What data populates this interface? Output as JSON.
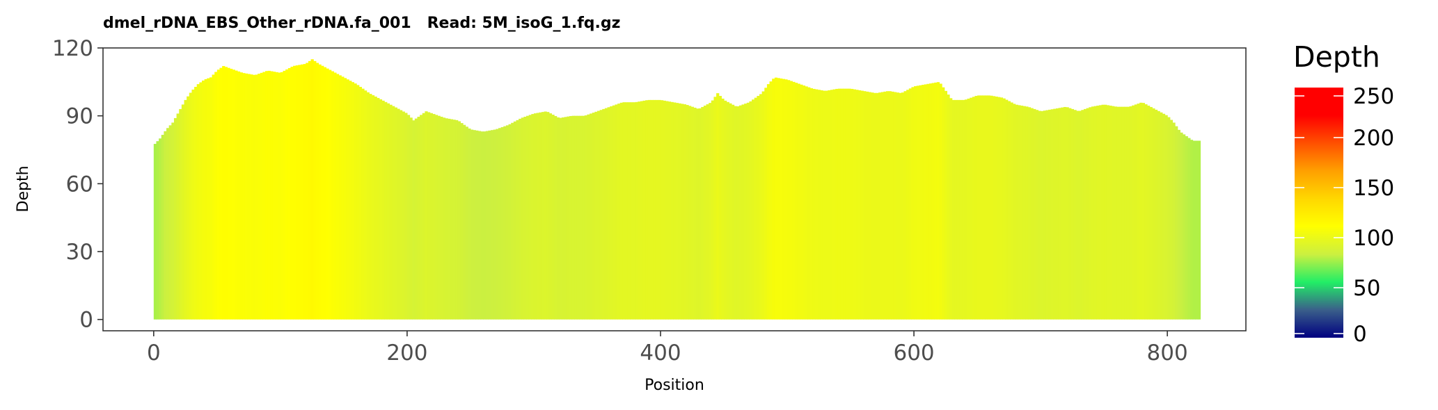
{
  "chart_data": {
    "type": "area",
    "title": "dmel_rDNA_EBS_Other_rDNA.fa_001   Read: 5M_isoG_1.fq.gz",
    "xlabel": "Position",
    "ylabel": "Depth",
    "xlim": [
      -40,
      862
    ],
    "ylim": [
      -5,
      120
    ],
    "x_ticks": [
      0,
      200,
      400,
      600,
      800
    ],
    "y_ticks": [
      0,
      30,
      60,
      90,
      120
    ],
    "grid": false,
    "legend": {
      "title": "Depth",
      "placement": "right",
      "range": [
        0,
        250
      ],
      "ticks": [
        0,
        50,
        100,
        150,
        200,
        250
      ],
      "gradient_colors": [
        "#000080",
        "#3A5F8A",
        "#22EE66",
        "#CCF040",
        "#FFFF00",
        "#FFD700",
        "#FFA000",
        "#FF5000",
        "#FF0000",
        "#FF0000"
      ]
    },
    "x_range": [
      0,
      825
    ],
    "profile": [
      [
        0,
        77
      ],
      [
        5,
        80
      ],
      [
        10,
        84
      ],
      [
        15,
        87
      ],
      [
        20,
        92
      ],
      [
        25,
        97
      ],
      [
        30,
        101
      ],
      [
        35,
        104
      ],
      [
        40,
        106
      ],
      [
        45,
        107
      ],
      [
        50,
        110
      ],
      [
        55,
        112
      ],
      [
        60,
        111
      ],
      [
        70,
        109
      ],
      [
        80,
        108
      ],
      [
        90,
        110
      ],
      [
        100,
        109
      ],
      [
        110,
        112
      ],
      [
        120,
        113
      ],
      [
        125,
        115
      ],
      [
        130,
        113
      ],
      [
        140,
        110
      ],
      [
        150,
        107
      ],
      [
        160,
        104
      ],
      [
        170,
        100
      ],
      [
        180,
        97
      ],
      [
        190,
        94
      ],
      [
        200,
        91
      ],
      [
        205,
        88
      ],
      [
        210,
        90
      ],
      [
        215,
        92
      ],
      [
        220,
        91
      ],
      [
        230,
        89
      ],
      [
        240,
        88
      ],
      [
        250,
        84
      ],
      [
        260,
        83
      ],
      [
        270,
        84
      ],
      [
        280,
        86
      ],
      [
        290,
        89
      ],
      [
        300,
        91
      ],
      [
        310,
        92
      ],
      [
        320,
        89
      ],
      [
        330,
        90
      ],
      [
        340,
        90
      ],
      [
        350,
        92
      ],
      [
        360,
        94
      ],
      [
        370,
        96
      ],
      [
        380,
        96
      ],
      [
        390,
        97
      ],
      [
        400,
        97
      ],
      [
        410,
        96
      ],
      [
        420,
        95
      ],
      [
        430,
        93
      ],
      [
        440,
        96
      ],
      [
        445,
        100
      ],
      [
        450,
        97
      ],
      [
        460,
        94
      ],
      [
        470,
        96
      ],
      [
        480,
        100
      ],
      [
        485,
        104
      ],
      [
        490,
        107
      ],
      [
        500,
        106
      ],
      [
        510,
        104
      ],
      [
        520,
        102
      ],
      [
        530,
        101
      ],
      [
        540,
        102
      ],
      [
        550,
        102
      ],
      [
        560,
        101
      ],
      [
        570,
        100
      ],
      [
        580,
        101
      ],
      [
        590,
        100
      ],
      [
        600,
        103
      ],
      [
        610,
        104
      ],
      [
        620,
        105
      ],
      [
        625,
        101
      ],
      [
        630,
        97
      ],
      [
        640,
        97
      ],
      [
        650,
        99
      ],
      [
        660,
        99
      ],
      [
        670,
        98
      ],
      [
        680,
        95
      ],
      [
        690,
        94
      ],
      [
        700,
        92
      ],
      [
        710,
        93
      ],
      [
        720,
        94
      ],
      [
        730,
        92
      ],
      [
        740,
        94
      ],
      [
        750,
        95
      ],
      [
        760,
        94
      ],
      [
        770,
        94
      ],
      [
        780,
        96
      ],
      [
        790,
        93
      ],
      [
        800,
        90
      ],
      [
        805,
        87
      ],
      [
        810,
        83
      ],
      [
        815,
        81
      ],
      [
        820,
        79
      ],
      [
        825,
        79
      ]
    ]
  }
}
